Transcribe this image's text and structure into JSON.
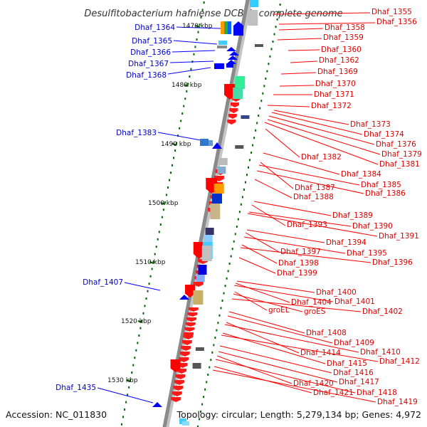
{
  "title": "Desulfitobacterium hafniense DCB-2, complete genome",
  "accession": "Accession: NC_011830",
  "topology": "Topology: circular; Length: 5,279,134 bp; Genes: 4,972",
  "colors": {
    "forward_gene": "#ff0000",
    "reverse_gene": "#0000ff",
    "forward_label": "#dd0000",
    "reverse_label": "#0000cc",
    "backbone": "#888888",
    "tick": "#006600"
  },
  "scale_labels": [
    "1470 kbp",
    "1480 kbp",
    "1490 kbp",
    "1500 kbp",
    "1510 kbp",
    "1520 kbp",
    "1530 kbp"
  ],
  "left_labels": [
    "Dhaf_1364",
    "Dhaf_1365",
    "Dhaf_1366",
    "Dhaf_1367",
    "Dhaf_1368",
    "Dhaf_1383",
    "Dhaf_1407",
    "Dhaf_1435"
  ],
  "right_labels": [
    "Dhaf_1355",
    "Dhaf_1356",
    "Dhaf_1358",
    "Dhaf_1359",
    "Dhaf_1360",
    "Dhaf_1362",
    "Dhaf_1369",
    "Dhaf_1370",
    "Dhaf_1371",
    "Dhaf_1372",
    "Dhaf_1373",
    "Dhaf_1374",
    "Dhaf_1376",
    "Dhaf_1379",
    "Dhaf_1382",
    "Dhaf_1381",
    "Dhaf_1384",
    "Dhaf_1387",
    "Dhaf_1385",
    "Dhaf_1386",
    "Dhaf_1388",
    "Dhaf_1389",
    "Dhaf_1393",
    "Dhaf_1390",
    "Dhaf_1391",
    "Dhaf_1394",
    "Dhaf_1397",
    "Dhaf_1395",
    "Dhaf_1398",
    "Dhaf_1396",
    "Dhaf_1399",
    "Dhaf_1400",
    "Dhaf_1404",
    "Dhaf_1401",
    "groEL",
    "groES",
    "Dhaf_1402",
    "Dhaf_1408",
    "Dhaf_1409",
    "Dhaf_1414",
    "Dhaf_1410",
    "Dhaf_1415",
    "Dhaf_1412",
    "Dhaf_1416",
    "Dhaf_1417",
    "Dhaf_1420",
    "Dhaf_1418",
    "Dhaf_1421",
    "Dhaf_1419"
  ]
}
